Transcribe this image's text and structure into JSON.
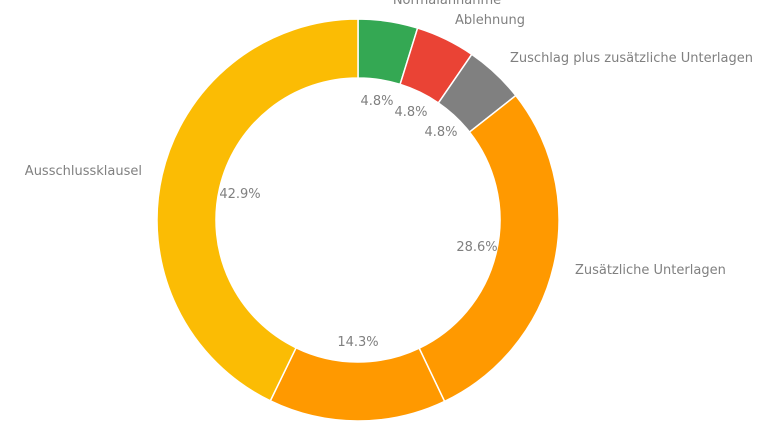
{
  "chart_data": {
    "type": "pie",
    "donut": true,
    "title": "",
    "categories": [
      "Normalannahme",
      "Ablehnung",
      "Zuschlag plus zusätzliche Unterlagen",
      "Zusätzliche Unterlagen",
      "",
      "Ausschlussklausel"
    ],
    "values": [
      4.8,
      4.8,
      4.8,
      28.6,
      14.3,
      42.9
    ],
    "value_labels": [
      "4.8%",
      "4.8%",
      "4.8%",
      "28.6%",
      "14.3%",
      "42.9%"
    ],
    "colors": [
      "#34a853",
      "#ea4335",
      "#808080",
      "#ff9900",
      "#ff9900",
      "#fbbc04"
    ],
    "start": "top",
    "direction": "clockwise",
    "legend": "none"
  }
}
